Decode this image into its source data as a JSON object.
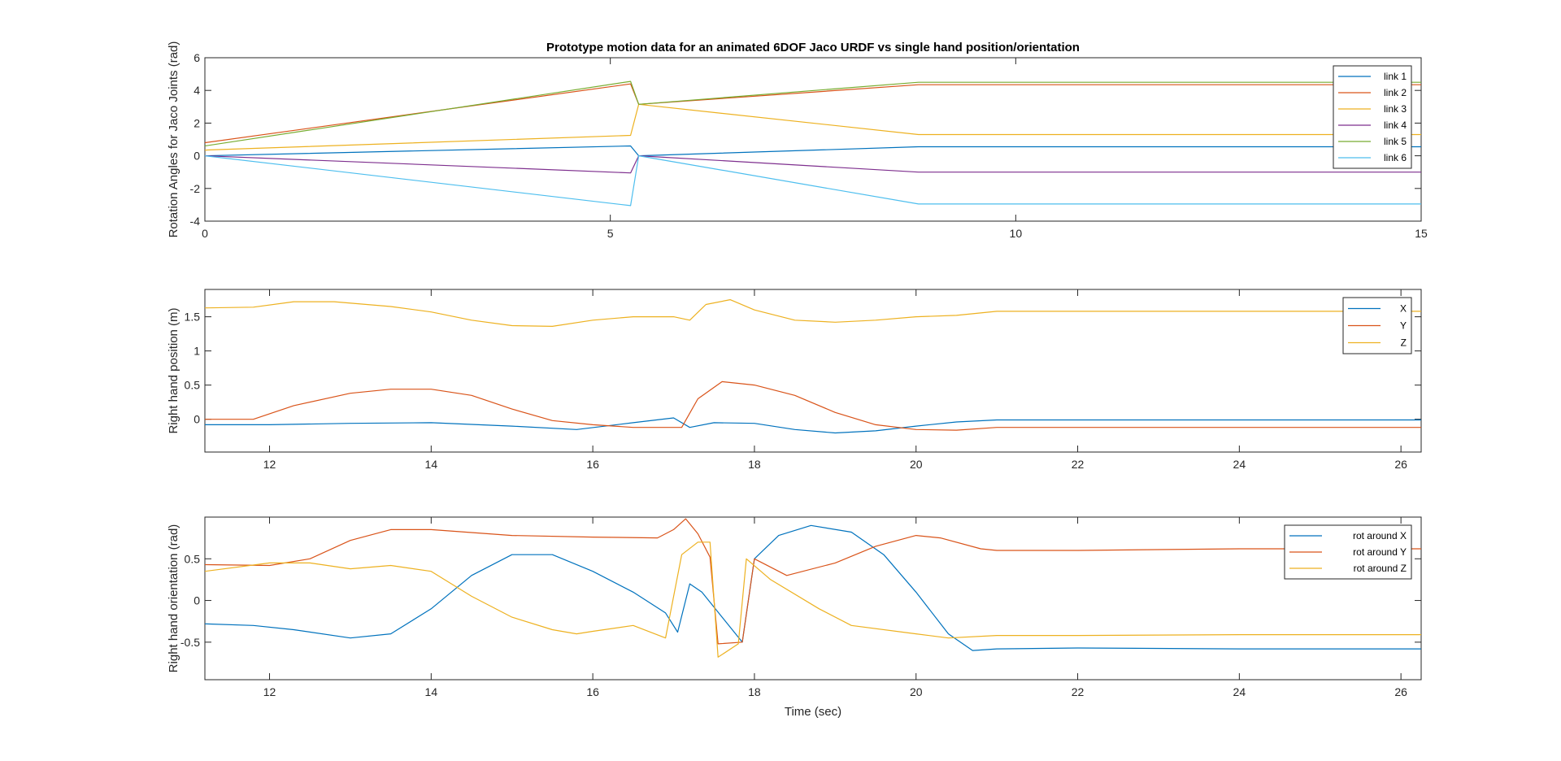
{
  "chart_data": [
    {
      "type": "line",
      "title": "Prototype motion data for an animated 6DOF Jaco URDF vs single hand position/orientation",
      "xlabel": "",
      "ylabel": "Rotation Angles for Jaco Joints (rad)",
      "xlim": [
        0,
        15
      ],
      "ylim": [
        -4,
        6
      ],
      "xticks": [
        0,
        5,
        10,
        15
      ],
      "yticks": [
        -4,
        -2,
        0,
        2,
        4,
        6
      ],
      "legend_position": "top-right",
      "series": [
        {
          "name": "link 1",
          "color": "#0072BD",
          "x": [
            0,
            5.25,
            5.35,
            8.8,
            15
          ],
          "y": [
            0,
            0.6,
            0,
            0.55,
            0.55
          ]
        },
        {
          "name": "link 2",
          "color": "#D95319",
          "x": [
            0,
            5.25,
            5.35,
            8.8,
            15
          ],
          "y": [
            0.8,
            4.4,
            3.15,
            4.35,
            4.35
          ]
        },
        {
          "name": "link 3",
          "color": "#EDB120",
          "x": [
            0,
            5.25,
            5.35,
            8.8,
            15
          ],
          "y": [
            0.35,
            1.25,
            3.15,
            1.3,
            1.3
          ]
        },
        {
          "name": "link 4",
          "color": "#7E2F8E",
          "x": [
            0,
            5.25,
            5.35,
            8.8,
            15
          ],
          "y": [
            0,
            -1.05,
            0,
            -1.0,
            -1.0
          ]
        },
        {
          "name": "link 5",
          "color": "#77AC30",
          "x": [
            0,
            5.25,
            5.35,
            8.8,
            15
          ],
          "y": [
            0.6,
            4.55,
            3.15,
            4.5,
            4.5
          ]
        },
        {
          "name": "link 6",
          "color": "#4DBEEE",
          "x": [
            0,
            5.25,
            5.35,
            8.8,
            15
          ],
          "y": [
            0,
            -3.05,
            0,
            -2.95,
            -2.95
          ]
        }
      ]
    },
    {
      "type": "line",
      "title": "",
      "xlabel": "",
      "ylabel": "Right hand position (m)",
      "xlim": [
        11.2,
        26.25
      ],
      "ylim": [
        -0.48,
        1.9
      ],
      "xticks": [
        12,
        14,
        16,
        18,
        20,
        22,
        24,
        26
      ],
      "yticks": [
        0,
        0.5,
        1,
        1.5
      ],
      "ytick_labels": [
        "0",
        "0.5",
        "1",
        "1.5"
      ],
      "legend_position": "top-right",
      "series": [
        {
          "name": "X",
          "color": "#0072BD",
          "x": [
            11.2,
            12,
            13,
            14,
            15,
            15.8,
            16.5,
            17,
            17.2,
            17.5,
            18,
            18.5,
            19,
            19.5,
            20,
            20.5,
            21,
            22,
            24,
            26.25
          ],
          "y": [
            -0.08,
            -0.08,
            -0.06,
            -0.05,
            -0.1,
            -0.15,
            -0.05,
            0.02,
            -0.12,
            -0.05,
            -0.06,
            -0.15,
            -0.2,
            -0.17,
            -0.1,
            -0.04,
            -0.01,
            -0.01,
            -0.01,
            -0.01
          ]
        },
        {
          "name": "Y",
          "color": "#D95319",
          "x": [
            11.2,
            11.8,
            12.3,
            13,
            13.5,
            14,
            14.5,
            15,
            15.5,
            16,
            16.5,
            17.1,
            17.3,
            17.6,
            18,
            18.5,
            19,
            19.5,
            20,
            20.5,
            21,
            22,
            24,
            26.25
          ],
          "y": [
            0,
            0,
            0.2,
            0.38,
            0.44,
            0.44,
            0.35,
            0.15,
            -0.02,
            -0.08,
            -0.12,
            -0.12,
            0.3,
            0.55,
            0.5,
            0.35,
            0.1,
            -0.08,
            -0.15,
            -0.16,
            -0.12,
            -0.12,
            -0.12,
            -0.12
          ]
        },
        {
          "name": "Z",
          "color": "#EDB120",
          "x": [
            11.2,
            11.8,
            12.3,
            12.8,
            13.5,
            14,
            14.5,
            15,
            15.5,
            16,
            16.5,
            17,
            17.2,
            17.4,
            17.7,
            18,
            18.5,
            19,
            19.5,
            20,
            20.5,
            21,
            22,
            24,
            26.25
          ],
          "y": [
            1.63,
            1.64,
            1.72,
            1.72,
            1.65,
            1.57,
            1.45,
            1.37,
            1.36,
            1.45,
            1.5,
            1.5,
            1.45,
            1.68,
            1.75,
            1.6,
            1.45,
            1.42,
            1.45,
            1.5,
            1.52,
            1.58,
            1.58,
            1.58,
            1.58
          ]
        }
      ]
    },
    {
      "type": "line",
      "title": "",
      "xlabel": "Time (sec)",
      "ylabel": "Right hand orientation (rad)",
      "xlim": [
        11.2,
        26.25
      ],
      "ylim": [
        -0.95,
        1.0
      ],
      "xticks": [
        12,
        14,
        16,
        18,
        20,
        22,
        24,
        26
      ],
      "yticks": [
        -0.5,
        0,
        0.5
      ],
      "ytick_labels": [
        "-0.5",
        "0",
        "0.5"
      ],
      "legend_position": "top-right",
      "series": [
        {
          "name": "rot around X",
          "color": "#0072BD",
          "x": [
            11.2,
            11.8,
            12.3,
            13,
            13.5,
            14,
            14.5,
            15,
            15.5,
            16,
            16.5,
            16.9,
            17.05,
            17.2,
            17.35,
            17.6,
            17.85,
            18,
            18.3,
            18.7,
            19.2,
            19.6,
            20,
            20.4,
            20.7,
            21,
            22,
            24,
            26.25
          ],
          "y": [
            -0.28,
            -0.3,
            -0.35,
            -0.45,
            -0.4,
            -0.1,
            0.3,
            0.55,
            0.55,
            0.35,
            0.1,
            -0.15,
            -0.38,
            0.2,
            0.1,
            -0.2,
            -0.5,
            0.5,
            0.78,
            0.9,
            0.82,
            0.55,
            0.1,
            -0.4,
            -0.6,
            -0.58,
            -0.57,
            -0.58,
            -0.58
          ]
        },
        {
          "name": "rot around Y",
          "color": "#D95319",
          "x": [
            11.2,
            12,
            12.5,
            13,
            13.5,
            14,
            15,
            16,
            16.8,
            17,
            17.15,
            17.3,
            17.45,
            17.55,
            17.85,
            18,
            18.4,
            19,
            19.5,
            20,
            20.3,
            20.8,
            21,
            22,
            24,
            26.25
          ],
          "y": [
            0.43,
            0.42,
            0.5,
            0.72,
            0.85,
            0.85,
            0.78,
            0.76,
            0.75,
            0.85,
            0.98,
            0.8,
            0.52,
            -0.52,
            -0.5,
            0.5,
            0.3,
            0.45,
            0.65,
            0.78,
            0.75,
            0.62,
            0.6,
            0.6,
            0.62,
            0.62
          ]
        },
        {
          "name": "rot around Z",
          "color": "#EDB120",
          "x": [
            11.2,
            12,
            12.5,
            13,
            13.5,
            14,
            14.5,
            15,
            15.5,
            15.8,
            16,
            16.5,
            16.9,
            17.1,
            17.3,
            17.45,
            17.55,
            17.8,
            17.9,
            18.2,
            18.8,
            19.2,
            20,
            20.4,
            21,
            22,
            24,
            26.25
          ],
          "y": [
            0.35,
            0.45,
            0.45,
            0.38,
            0.42,
            0.35,
            0.05,
            -0.2,
            -0.35,
            -0.4,
            -0.37,
            -0.3,
            -0.45,
            0.55,
            0.7,
            0.7,
            -0.68,
            -0.52,
            0.5,
            0.25,
            -0.1,
            -0.3,
            -0.4,
            -0.45,
            -0.42,
            -0.42,
            -0.41,
            -0.41
          ]
        }
      ]
    }
  ]
}
